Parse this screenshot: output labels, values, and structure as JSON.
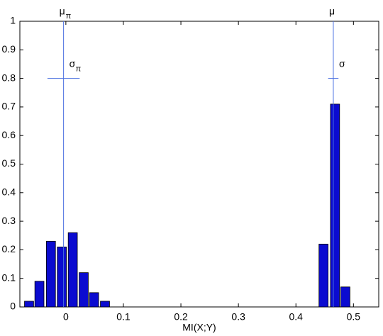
{
  "chart_data": {
    "type": "bar",
    "x": [
      -0.064,
      -0.046,
      -0.026,
      -0.007,
      0.012,
      0.031,
      0.049,
      0.068,
      0.448,
      0.468,
      0.486
    ],
    "values": [
      0.02,
      0.09,
      0.23,
      0.21,
      0.26,
      0.12,
      0.05,
      0.02,
      0.22,
      0.71,
      0.07
    ],
    "color": "#0b0bd0",
    "x_label": "MI(X;Y)",
    "xlim": [
      -0.08,
      0.544
    ],
    "xticks": [
      0,
      0.1,
      0.2,
      0.3,
      0.4,
      0.5
    ],
    "ylim": [
      0,
      1
    ],
    "yticks": [
      0,
      0.1,
      0.2,
      0.3,
      0.4,
      0.5,
      0.6,
      0.7,
      0.8,
      0.9,
      1
    ],
    "annotations": [
      {
        "mean_label": "μ",
        "mean_subscript": "π",
        "mean": -0.004,
        "sigma_label": "σ",
        "sigma_subscript": "π",
        "sigma": 0.028,
        "sigma_y": 0.8
      },
      {
        "mean_label": "μ",
        "mean": 0.465,
        "sigma_label": "σ",
        "sigma": 0.009,
        "sigma_y": 0.8
      }
    ],
    "annotation_color": "#4a6fe0"
  }
}
